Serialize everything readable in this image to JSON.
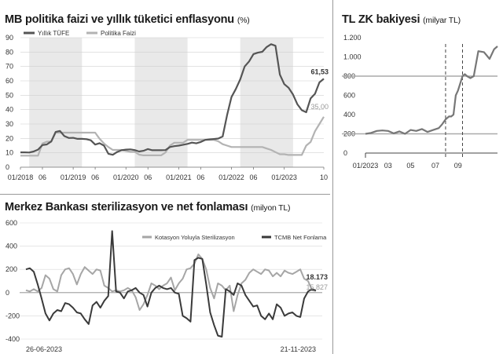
{
  "chart_data": [
    {
      "id": "policy_inflation",
      "type": "line",
      "title": "MB politika faizi ve yıllık tüketici enflasyonu",
      "unit": "(%)",
      "ylim": [
        0,
        90
      ],
      "yticks": [
        0,
        10,
        20,
        30,
        40,
        50,
        60,
        70,
        80,
        90
      ],
      "xlim": [
        0,
        69
      ],
      "xticks": [
        {
          "pos": 0,
          "label": "01/2018"
        },
        {
          "pos": 5,
          "label": "06"
        },
        {
          "pos": 12,
          "label": "01/2019"
        },
        {
          "pos": 17,
          "label": "06"
        },
        {
          "pos": 24,
          "label": "01/2020"
        },
        {
          "pos": 29,
          "label": "06"
        },
        {
          "pos": 36,
          "label": "01/2021"
        },
        {
          "pos": 41,
          "label": "06"
        },
        {
          "pos": 48,
          "label": "01/2022"
        },
        {
          "pos": 53,
          "label": "06"
        },
        {
          "pos": 60,
          "label": "01/2023"
        },
        {
          "pos": 69,
          "label": "10"
        }
      ],
      "shaded_spans": [
        [
          2,
          14
        ],
        [
          26,
          38
        ],
        [
          50,
          62
        ]
      ],
      "legend_position": "top-left",
      "end_labels": [
        "61,53",
        "35,00"
      ],
      "series": [
        {
          "name": "Yıllık TÜFE",
          "color": "#555555",
          "x": [
            0,
            1,
            2,
            3,
            4,
            5,
            6,
            7,
            8,
            9,
            10,
            11,
            12,
            13,
            14,
            15,
            16,
            17,
            18,
            19,
            20,
            21,
            22,
            23,
            24,
            25,
            26,
            27,
            28,
            29,
            30,
            31,
            32,
            33,
            34,
            35,
            36,
            37,
            38,
            39,
            40,
            41,
            42,
            43,
            44,
            45,
            46,
            47,
            48,
            49,
            50,
            51,
            52,
            53,
            54,
            55,
            56,
            57,
            58,
            59,
            60,
            61,
            62,
            63,
            64,
            65,
            66,
            67,
            68,
            69
          ],
          "values": [
            10.3,
            10.3,
            10.2,
            10.9,
            12.2,
            15.4,
            15.8,
            17.9,
            24.5,
            25.2,
            21.6,
            20.3,
            20.4,
            19.7,
            19.7,
            19.5,
            18.7,
            15.7,
            16.7,
            15.0,
            9.3,
            8.6,
            10.6,
            11.8,
            12.2,
            12.4,
            11.9,
            10.9,
            11.4,
            12.6,
            11.8,
            11.8,
            11.8,
            11.9,
            14.0,
            14.6,
            15.0,
            15.6,
            16.2,
            17.1,
            16.6,
            17.5,
            19.0,
            19.3,
            19.6,
            19.9,
            21.3,
            36.1,
            48.7,
            54.4,
            61.1,
            70.0,
            73.5,
            78.6,
            79.6,
            80.2,
            83.5,
            85.5,
            84.4,
            64.3,
            57.7,
            55.2,
            50.5,
            43.7,
            39.6,
            38.2,
            47.8,
            51.0,
            58.9,
            61.5
          ]
        },
        {
          "name": "Politika Faizi",
          "color": "#b3b3b3",
          "x": [
            0,
            1,
            2,
            3,
            4,
            5,
            6,
            7,
            8,
            9,
            10,
            11,
            12,
            13,
            14,
            15,
            16,
            17,
            18,
            19,
            20,
            21,
            22,
            23,
            24,
            25,
            26,
            27,
            28,
            29,
            30,
            31,
            32,
            33,
            34,
            35,
            36,
            37,
            38,
            39,
            40,
            41,
            42,
            43,
            44,
            45,
            46,
            47,
            48,
            49,
            50,
            51,
            52,
            53,
            54,
            55,
            56,
            57,
            58,
            59,
            60,
            61,
            62,
            63,
            64,
            65,
            66,
            67,
            68,
            69
          ],
          "values": [
            8,
            8,
            8,
            8,
            8,
            16.5,
            17.75,
            17.75,
            24,
            24,
            24,
            24,
            24,
            24,
            24,
            24,
            24,
            24,
            19.75,
            16.5,
            14,
            12,
            12,
            12,
            11.25,
            10.75,
            10.75,
            8.75,
            8.25,
            8.25,
            8.25,
            8.25,
            8.25,
            10.25,
            15,
            17,
            17,
            17,
            19,
            19,
            19,
            19,
            19,
            19,
            19,
            18,
            16,
            15,
            14,
            14,
            14,
            14,
            14,
            14,
            14,
            14,
            13,
            12,
            10.5,
            9,
            9,
            8.5,
            8.5,
            8.5,
            8.5,
            15,
            17.5,
            25,
            30,
            35
          ]
        }
      ]
    },
    {
      "id": "tl_zk",
      "type": "line",
      "title": "TL ZK bakiyesi",
      "unit": "(milyar TL)",
      "ylim": [
        0,
        1200
      ],
      "yticks": [
        {
          "v": 0,
          "label": "0"
        },
        {
          "v": 200,
          "label": "200"
        },
        {
          "v": 400,
          "label": "400"
        },
        {
          "v": 600,
          "label": "600"
        },
        {
          "v": 800,
          "label": "800"
        },
        {
          "v": 1000,
          "label": "1.000"
        },
        {
          "v": 1200,
          "label": "1.200"
        }
      ],
      "reference_lines": [
        200,
        800
      ],
      "xlim": [
        0,
        11.7
      ],
      "xticks": [
        {
          "pos": 0,
          "label": "01/2023"
        },
        {
          "pos": 2,
          "label": "03"
        },
        {
          "pos": 4,
          "label": "05"
        },
        {
          "pos": 6.2,
          "label": "07"
        },
        {
          "pos": 8.2,
          "label": "09"
        }
      ],
      "markers": [
        7.1,
        8.6
      ],
      "series": [
        {
          "name": "TL ZK",
          "color": "#777777",
          "x": [
            0,
            0.5,
            1,
            1.5,
            2,
            2.5,
            3,
            3.5,
            4,
            4.5,
            5,
            5.5,
            6,
            6.5,
            6.8,
            7.1,
            7.4,
            7.6,
            7.8,
            8.0,
            8.2,
            8.6,
            8.8,
            9.0,
            9.3,
            9.6,
            10.0,
            10.5,
            11.0,
            11.4,
            11.7
          ],
          "values": [
            200,
            210,
            230,
            235,
            230,
            205,
            225,
            200,
            240,
            230,
            250,
            220,
            240,
            260,
            300,
            350,
            380,
            380,
            400,
            600,
            650,
            800,
            820,
            800,
            780,
            800,
            1060,
            1050,
            980,
            1080,
            1110
          ]
        }
      ]
    },
    {
      "id": "sterilization",
      "type": "line",
      "title": "Merkez Bankası sterilizasyon ve net fonlaması",
      "unit": "(milyon TL)",
      "ylim": [
        -400,
        600
      ],
      "yticks": [
        -400,
        -200,
        0,
        200,
        400,
        600
      ],
      "xticks": [
        "26-06-2023",
        "21-11-2023"
      ],
      "legend_position": "top-right",
      "end_labels": [
        "18.173",
        "15.827"
      ],
      "series": [
        {
          "name": "Kotasyon Yoluyla Sterilizasyon",
          "color": "#a6a6a6",
          "values": [
            20,
            10,
            30,
            10,
            40,
            150,
            120,
            30,
            10,
            150,
            200,
            210,
            160,
            70,
            160,
            220,
            190,
            160,
            200,
            190,
            60,
            40,
            10,
            20,
            10,
            20,
            40,
            20,
            -40,
            -150,
            -100,
            -20,
            80,
            60,
            30,
            60,
            80,
            130,
            20,
            80,
            120,
            200,
            210,
            250,
            330,
            290,
            200,
            40,
            -50,
            80,
            60,
            20,
            60,
            -160,
            -20,
            80,
            110,
            170,
            200,
            180,
            160,
            200,
            190,
            140,
            170,
            140,
            190,
            170,
            160,
            180,
            200,
            120,
            100,
            20,
            15
          ]
        },
        {
          "name": "TCMB Net Fonlama",
          "color": "#3a3a3a",
          "values": [
            200,
            210,
            180,
            70,
            -50,
            -180,
            -240,
            -180,
            -150,
            -160,
            -90,
            -100,
            -130,
            -170,
            -180,
            -230,
            -270,
            -110,
            -80,
            -130,
            -70,
            -30,
            530,
            10,
            0,
            -50,
            10,
            20,
            40,
            0,
            -20,
            -120,
            0,
            40,
            60,
            40,
            30,
            40,
            0,
            -10,
            -200,
            -220,
            -250,
            280,
            300,
            290,
            70,
            -170,
            -280,
            -370,
            -380,
            30,
            10,
            -20,
            80,
            60,
            -20,
            -70,
            -120,
            -110,
            -200,
            -230,
            -180,
            -230,
            -100,
            -130,
            -200,
            -180,
            -170,
            -200,
            -210,
            -50,
            10,
            30,
            18
          ]
        }
      ]
    }
  ]
}
